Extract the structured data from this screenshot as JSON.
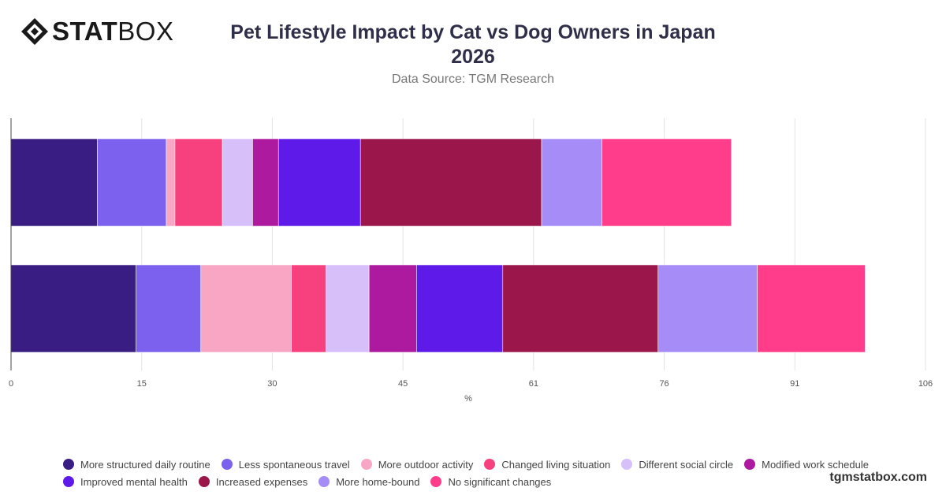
{
  "brand": {
    "logo_bold": "STAT",
    "logo_light": "BOX"
  },
  "header": {
    "title": "Pet Lifestyle Impact by Cat vs Dog Owners in Japan 2026",
    "subtitle": "Data Source: TGM Research"
  },
  "footer": {
    "site": "tgmstatbox.com"
  },
  "chart_data": {
    "type": "bar",
    "orientation": "horizontal",
    "stacked": true,
    "title": "Pet Lifestyle Impact by Cat vs Dog Owners in Japan 2026",
    "subtitle": "Data Source: TGM Research",
    "xlabel": "%",
    "ylabel": "",
    "xlim": [
      0,
      106
    ],
    "x_ticks": [
      "0",
      "15",
      "30",
      "45",
      "61",
      "76",
      "91",
      "106"
    ],
    "categories": [
      "",
      ""
    ],
    "grid": true,
    "legend_position": "bottom",
    "series": [
      {
        "name": "More structured daily routine",
        "color": "#3a1d82",
        "values": [
          10,
          14.5
        ]
      },
      {
        "name": "Less spontaneous travel",
        "color": "#7b61ee",
        "values": [
          8,
          7.5
        ]
      },
      {
        "name": "More outdoor activity",
        "color": "#f9a6c4",
        "values": [
          1,
          10.5
        ]
      },
      {
        "name": "Changed living situation",
        "color": "#f7417e",
        "values": [
          5.5,
          4
        ]
      },
      {
        "name": "Different social circle",
        "color": "#d7c0fa",
        "values": [
          3.5,
          5
        ]
      },
      {
        "name": "Modified work schedule",
        "color": "#ad1aa0",
        "values": [
          3,
          5.5
        ]
      },
      {
        "name": "Improved mental health",
        "color": "#5d1ae8",
        "values": [
          9.5,
          10
        ]
      },
      {
        "name": "Increased expenses",
        "color": "#9b174b",
        "values": [
          21,
          18
        ]
      },
      {
        "name": "More home-bound",
        "color": "#a58cf7",
        "values": [
          7,
          11.5
        ]
      },
      {
        "name": "No significant changes",
        "color": "#ff3d8b",
        "values": [
          15,
          12.5
        ]
      }
    ]
  }
}
